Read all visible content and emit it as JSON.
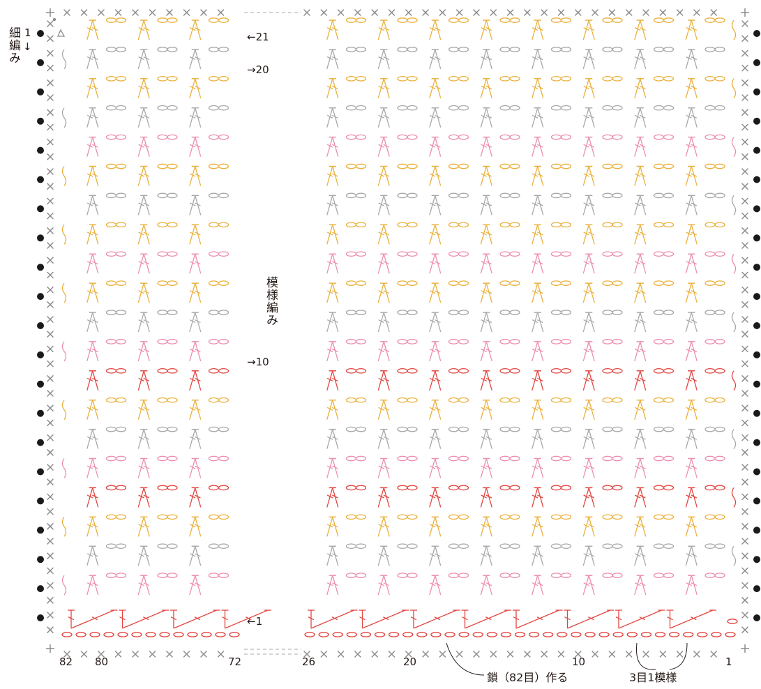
{
  "colors": {
    "red": "#e2453f",
    "pink": "#ec8db1",
    "yellow": "#eab03a",
    "gray": "#a8a8a8",
    "edge_x": "#8c8c8c",
    "dot": "#1a1a1a",
    "text": "#231815"
  },
  "rows": [
    {
      "row": 1,
      "color": "red",
      "direction": "left"
    },
    {
      "row": 2,
      "color": "pink",
      "direction": "right"
    },
    {
      "row": 3,
      "color": "gray",
      "direction": "left"
    },
    {
      "row": 4,
      "color": "yellow",
      "direction": "right"
    },
    {
      "row": 5,
      "color": "red",
      "direction": "left"
    },
    {
      "row": 6,
      "color": "pink",
      "direction": "right"
    },
    {
      "row": 7,
      "color": "gray",
      "direction": "left"
    },
    {
      "row": 8,
      "color": "yellow",
      "direction": "right"
    },
    {
      "row": 9,
      "color": "red",
      "direction": "left"
    },
    {
      "row": 10,
      "color": "pink",
      "direction": "right"
    },
    {
      "row": 11,
      "color": "gray",
      "direction": "left"
    },
    {
      "row": 12,
      "color": "yellow",
      "direction": "right"
    },
    {
      "row": 13,
      "color": "pink",
      "direction": "left"
    },
    {
      "row": 14,
      "color": "yellow",
      "direction": "right"
    },
    {
      "row": 15,
      "color": "gray",
      "direction": "left"
    },
    {
      "row": 16,
      "color": "yellow",
      "direction": "right"
    },
    {
      "row": 17,
      "color": "pink",
      "direction": "left"
    },
    {
      "row": 18,
      "color": "gray",
      "direction": "right"
    },
    {
      "row": 19,
      "color": "yellow",
      "direction": "left"
    },
    {
      "row": 20,
      "color": "gray",
      "direction": "right"
    },
    {
      "row": 21,
      "color": "yellow",
      "direction": "left"
    }
  ],
  "row_labels": [
    {
      "text": "←21",
      "row": 21
    },
    {
      "text": "→20",
      "row": 20
    },
    {
      "text": "→10",
      "row": 10
    },
    {
      "text": "←1",
      "row": 1
    }
  ],
  "column_labels": [
    "82",
    "80",
    "72",
    "26",
    "20",
    "10",
    "1"
  ],
  "pattern_label": "模様編み",
  "edging_label": "細編み",
  "edging_round": "1",
  "edging_arrow": "↓",
  "foundation_label": "鎖（82目）作る",
  "repeat_label": "3目1模様"
}
